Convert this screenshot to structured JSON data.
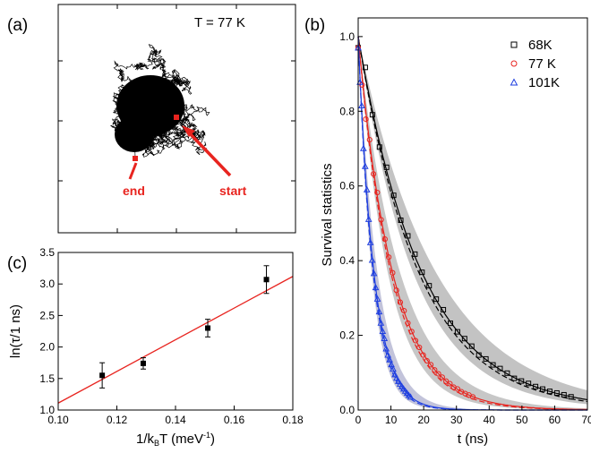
{
  "chart_data": [
    {
      "panel": "(a)",
      "type": "trajectory",
      "annotation": "T = 77 K",
      "markers": [
        {
          "label": "end",
          "color": "#e8241f"
        },
        {
          "label": "start",
          "color": "#e8241f"
        }
      ]
    },
    {
      "panel": "(b)",
      "type": "scatter",
      "xlabel": "t (ns)",
      "ylabel": "Survival statistics",
      "xlim": [
        0,
        70
      ],
      "ylim": [
        0,
        1.05
      ],
      "xticks": [
        0,
        10,
        20,
        30,
        40,
        50,
        60,
        70
      ],
      "yticks": [
        0.0,
        0.2,
        0.4,
        0.6,
        0.8,
        1.0
      ],
      "legend": "top-right",
      "series": [
        {
          "name": "68K",
          "marker": "square",
          "color": "#000000",
          "tau": 19.5
        },
        {
          "name": "77 K",
          "marker": "circle",
          "color": "#e8241f",
          "tau": 10.5
        },
        {
          "name": "101K",
          "marker": "triangle",
          "color": "#1f3fe0",
          "tau": 4.8
        }
      ]
    },
    {
      "panel": "(c)",
      "type": "scatter",
      "xlabel": "1/k",
      "xlabel_sub": "B",
      "xlabel_rest": "T (meV",
      "xlabel_sup": "-1",
      "xlabel_end": ")",
      "ylabel": "ln(τ/1 ns)",
      "xlim": [
        0.1,
        0.18
      ],
      "ylim": [
        1.0,
        3.5
      ],
      "xticks": [
        0.1,
        0.12,
        0.14,
        0.16,
        0.18
      ],
      "yticks": [
        1.0,
        1.5,
        2.0,
        2.5,
        3.0,
        3.5
      ],
      "points": [
        {
          "x": 0.115,
          "y": 1.55,
          "err": 0.2
        },
        {
          "x": 0.129,
          "y": 1.74,
          "err": 0.09
        },
        {
          "x": 0.151,
          "y": 2.3,
          "err": 0.14
        },
        {
          "x": 0.171,
          "y": 3.07,
          "err": 0.22
        }
      ],
      "fit": {
        "x": [
          0.1,
          0.18
        ],
        "y": [
          1.11,
          3.12
        ],
        "color": "#e8241f"
      }
    }
  ]
}
